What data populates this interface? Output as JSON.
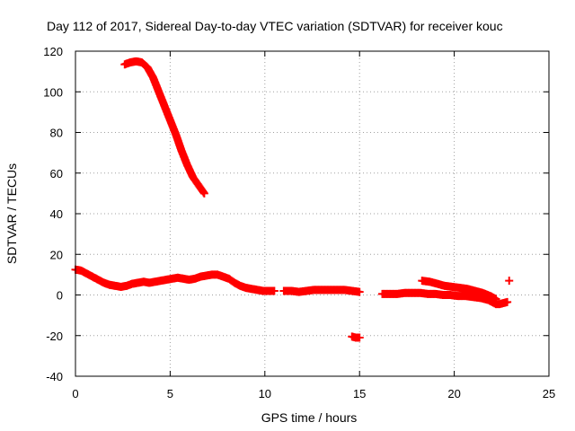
{
  "chart_data": {
    "type": "scatter",
    "title": "Day 112 of 2017, Sidereal Day-to-day VTEC variation (SDTVAR) for receiver kouc",
    "xlabel": "GPS time / hours",
    "ylabel": "SDTVAR / TECUs",
    "xlim": [
      0,
      25
    ],
    "ylim": [
      -40,
      120
    ],
    "xticks": [
      0,
      5,
      10,
      15,
      20,
      25
    ],
    "yticks": [
      -40,
      -20,
      0,
      20,
      40,
      60,
      80,
      100,
      120
    ],
    "grid": true,
    "marker": "+",
    "series": [
      {
        "name": "sat-high-arc",
        "color": "#ff0000",
        "x": [
          2.6,
          2.9,
          3.2,
          3.5,
          3.8,
          4.1,
          4.4,
          4.7,
          5.0,
          5.3,
          5.6,
          5.9,
          6.2,
          6.5,
          6.8
        ],
        "y": [
          113.5,
          114.5,
          115,
          114.5,
          112,
          107,
          100,
          93,
          86,
          79,
          71,
          64,
          58,
          54,
          50
        ]
      },
      {
        "name": "main-track",
        "color": "#ff0000",
        "x": [
          0.0,
          0.3,
          0.6,
          0.9,
          1.2,
          1.5,
          1.8,
          2.1,
          2.4,
          2.7,
          3.0,
          3.3,
          3.6,
          3.9,
          4.2,
          4.5,
          4.8,
          5.1,
          5.4,
          5.7,
          6.0,
          6.3,
          6.6,
          6.9,
          7.2,
          7.5,
          7.8,
          8.1,
          8.4,
          8.7,
          9.0,
          9.3,
          9.6,
          9.9,
          10.2,
          10.5
        ],
        "y": [
          12.5,
          12,
          10.5,
          9,
          7.5,
          6,
          5,
          4.5,
          4,
          4.5,
          5.5,
          6,
          6.5,
          6,
          6.5,
          7,
          7.5,
          8,
          8.5,
          8,
          7.5,
          8,
          9,
          9.5,
          10,
          10,
          9,
          8,
          6,
          4.5,
          3.5,
          3,
          2.5,
          2,
          2,
          2
        ]
      },
      {
        "name": "midday-segment",
        "color": "#ff0000",
        "x": [
          11.0,
          11.4,
          11.8,
          12.2,
          12.6,
          13.0,
          13.4,
          13.8,
          14.2,
          14.6,
          15.0
        ],
        "y": [
          2,
          2,
          1.5,
          2,
          2.5,
          2.5,
          2.5,
          2.5,
          2.5,
          2,
          1.5
        ]
      },
      {
        "name": "low-outlier",
        "color": "#ff0000",
        "x": [
          14.6,
          14.8,
          15.0
        ],
        "y": [
          -20.5,
          -21,
          -21
        ]
      },
      {
        "name": "evening-segment",
        "color": "#ff0000",
        "x": [
          16.2,
          16.6,
          17.0,
          17.4,
          17.8,
          18.2,
          18.6,
          19.0,
          19.4,
          19.8,
          20.2,
          20.6,
          21.0,
          21.4,
          21.8,
          22.0,
          22.2,
          22.4,
          22.6,
          22.8
        ],
        "y": [
          0.5,
          0.5,
          0.5,
          1,
          1,
          1,
          0.5,
          0.5,
          0,
          0,
          -0.5,
          -0.5,
          -1,
          -1.5,
          -2.5,
          -3.5,
          -4.5,
          -4.5,
          -4,
          -3.5
        ]
      },
      {
        "name": "evening-upper-arc",
        "color": "#ff0000",
        "x": [
          18.3,
          18.7,
          19.1,
          19.5,
          19.9,
          20.3,
          20.7,
          21.1,
          21.5,
          21.9,
          22.2
        ],
        "y": [
          7,
          6.5,
          5.5,
          4.5,
          4,
          3.5,
          3,
          2,
          1,
          -0.5,
          -2
        ]
      },
      {
        "name": "late-point",
        "color": "#ff0000",
        "x": [
          22.9
        ],
        "y": [
          7
        ]
      }
    ]
  }
}
